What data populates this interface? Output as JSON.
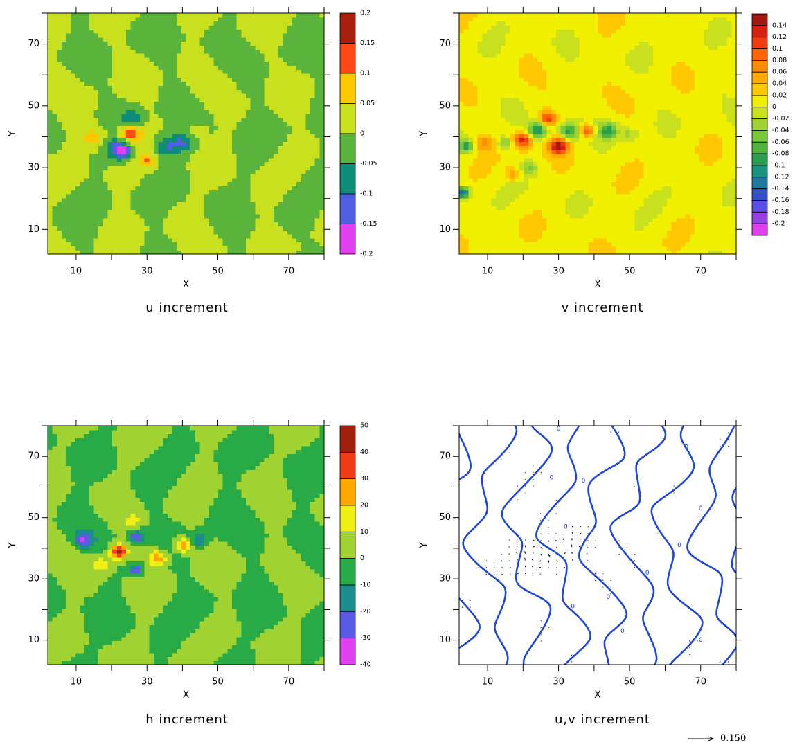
{
  "chart_data": [
    {
      "type": "contour",
      "title": "u increment",
      "x_label": "X",
      "y_label": "Y",
      "xlim": [
        2,
        80
      ],
      "ylim": [
        2,
        80
      ],
      "xticks": [
        10,
        30,
        50,
        70
      ],
      "yticks": [
        10,
        30,
        50,
        70
      ],
      "minor_xticks": [
        20,
        40,
        60,
        80
      ],
      "minor_yticks": [
        20,
        40,
        60,
        80
      ],
      "levels": [
        0.2,
        0.15,
        0.1,
        0.05,
        0,
        -0.05,
        -0.1,
        -0.15,
        -0.2
      ],
      "colors": [
        "#a81e0c",
        "#ff4614",
        "#ffc800",
        "#c8e01e",
        "#5ab43c",
        "#0f8c78",
        "#5060e0",
        "#e040f0"
      ]
    },
    {
      "type": "contour",
      "title": "v increment",
      "x_label": "X",
      "y_label": "Y",
      "xlim": [
        2,
        80
      ],
      "ylim": [
        2,
        80
      ],
      "xticks": [
        10,
        30,
        50,
        70
      ],
      "yticks": [
        10,
        30,
        50,
        70
      ],
      "minor_xticks": [
        20,
        40,
        60,
        80
      ],
      "minor_yticks": [
        20,
        40,
        60,
        80
      ],
      "levels": [
        0.14,
        0.12,
        0.1,
        0.08,
        0.06,
        0.04,
        0.02,
        0,
        -0.02,
        -0.04,
        -0.06,
        -0.08,
        -0.1,
        -0.12,
        -0.14,
        -0.16,
        -0.18,
        -0.2
      ],
      "colors": [
        "#a01810",
        "#d82010",
        "#f03c10",
        "#ff6400",
        "#ff8c00",
        "#ffaa00",
        "#ffc800",
        "#f0f000",
        "#c8e01e",
        "#a0d232",
        "#78c83c",
        "#50b43c",
        "#28a050",
        "#199682",
        "#1e78a0",
        "#3250c8",
        "#5a50e6",
        "#9640e6",
        "#e040f0"
      ]
    },
    {
      "type": "contour",
      "title": "h increment",
      "x_label": "X",
      "y_label": "Y",
      "xlim": [
        2,
        80
      ],
      "ylim": [
        2,
        80
      ],
      "xticks": [
        10,
        30,
        50,
        70
      ],
      "yticks": [
        10,
        30,
        50,
        70
      ],
      "minor_xticks": [
        20,
        40,
        60,
        80
      ],
      "minor_yticks": [
        20,
        40,
        60,
        80
      ],
      "levels": [
        50,
        40,
        30,
        20,
        10,
        0,
        -10,
        -20,
        -30,
        -40
      ],
      "colors": [
        "#a0200c",
        "#f03c14",
        "#ffa800",
        "#f0f014",
        "#a0d232",
        "#28aa46",
        "#1e8c8c",
        "#5a5ae6",
        "#e040f0"
      ]
    },
    {
      "type": "vector",
      "title": "u,v increment",
      "x_label": "X",
      "y_label": "Y",
      "xlim": [
        2,
        80
      ],
      "ylim": [
        2,
        80
      ],
      "xticks": [
        10,
        30,
        50,
        70
      ],
      "yticks": [
        10,
        30,
        50,
        70
      ],
      "minor_xticks": [
        20,
        40,
        60,
        80
      ],
      "minor_yticks": [
        20,
        40,
        60,
        80
      ],
      "contour_color": "#1e46dc",
      "vector_color": "#000000",
      "contour_label": "0",
      "ref_vector": {
        "value": 0.15,
        "label": "0.150"
      }
    }
  ]
}
